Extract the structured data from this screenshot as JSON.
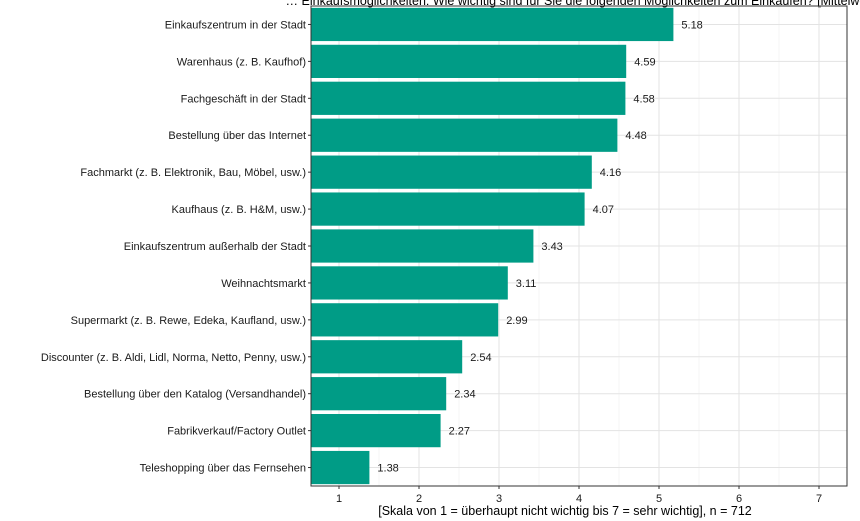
{
  "chart_data": {
    "type": "bar",
    "orientation": "horizontal",
    "title": "… Einkaufsmöglichkeiten: Wie wichtig sind für Sie die folgenden Möglichkeiten zum Einkaufen? [Mittelwerte]",
    "xlabel": "[Skala von 1 = überhaupt nicht wichtig bis 7 = sehr wichtig], n = 712",
    "ylabel": "",
    "xlim": [
      0.65,
      7.35
    ],
    "xticks": [
      "1",
      "2",
      "3",
      "4",
      "5",
      "6",
      "7"
    ],
    "grid": true,
    "bar_color": "#009C86",
    "categories": [
      "Einkaufszentrum in der Stadt",
      "Warenhaus (z. B. Kaufhof)",
      "Fachgeschäft in der Stadt",
      "Bestellung über das Internet",
      "Fachmarkt (z. B. Elektronik, Bau, Möbel, usw.)",
      "Kaufhaus (z. B. H&M, usw.)",
      "Einkaufszentrum außerhalb der Stadt",
      "Weihnachtsmarkt",
      "Supermarkt (z. B. Rewe, Edeka, Kaufland, usw.)",
      "Discounter (z. B. Aldi, Lidl, Norma, Netto, Penny, usw.)",
      "Bestellung über den Katalog (Versandhandel)",
      "Fabrikverkauf/Factory Outlet",
      "Teleshopping über das Fernsehen"
    ],
    "values": [
      5.18,
      4.59,
      4.58,
      4.48,
      4.16,
      4.07,
      3.43,
      3.11,
      2.99,
      2.54,
      2.34,
      2.27,
      1.38
    ],
    "value_labels": [
      "5.18",
      "4.59",
      "4.58",
      "4.48",
      "4.16",
      "4.07",
      "3.43",
      "3.11",
      "2.99",
      "2.54",
      "2.34",
      "2.27",
      "1.38"
    ]
  }
}
